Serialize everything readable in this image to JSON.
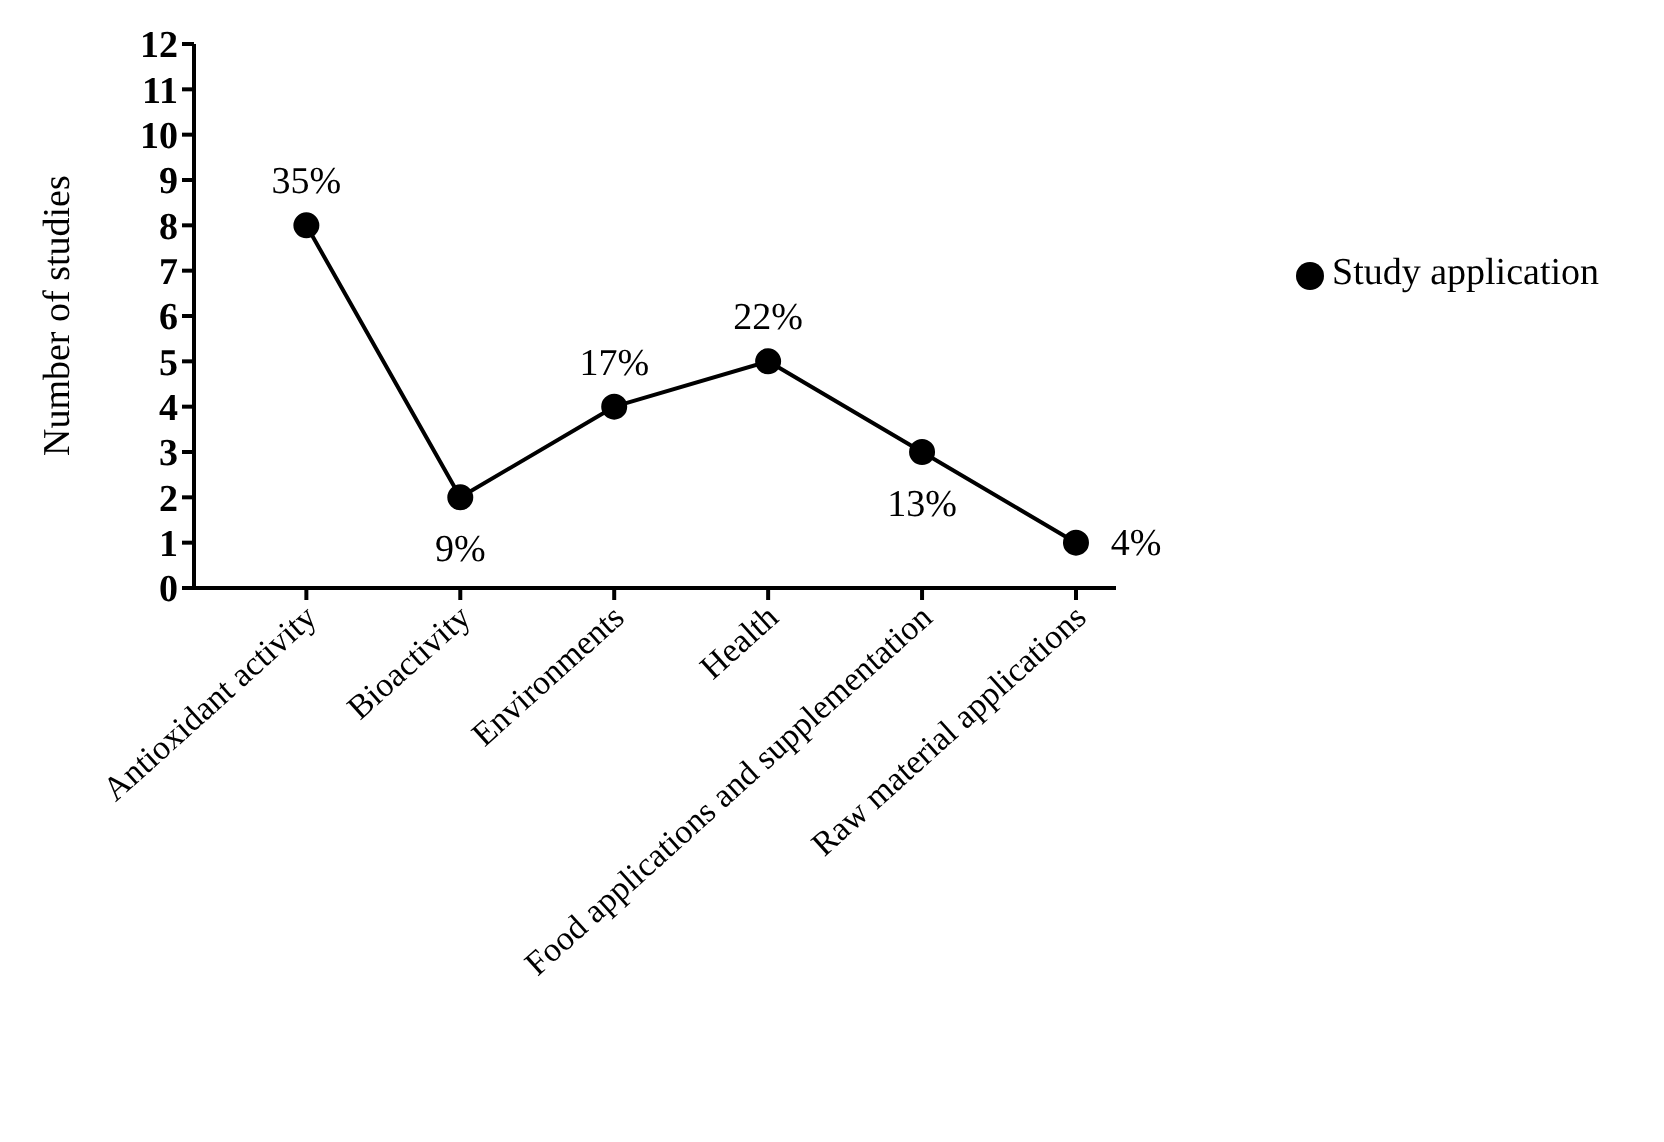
{
  "chart_data": {
    "type": "line",
    "ylabel": "Number of studies",
    "categories": [
      "Antioxidant activity",
      "Bioactivity",
      "Environments",
      "Health",
      "Food applications and supplementation",
      "Raw material applications"
    ],
    "series": [
      {
        "name": "Study application",
        "color": "#000000",
        "values": [
          8,
          2,
          4,
          5,
          3,
          1
        ]
      }
    ],
    "annotations": [
      {
        "text": "35%",
        "x": "Antioxidant activity",
        "y": 8
      },
      {
        "text": "9%",
        "x": "Bioactivity",
        "y": 2
      },
      {
        "text": "17%",
        "x": "Environments",
        "y": 4
      },
      {
        "text": "22%",
        "x": "Health",
        "y": 5
      },
      {
        "text": "13%",
        "x": "Food applications and supplementation",
        "y": 3
      },
      {
        "text": "4%",
        "x": "Raw material applications",
        "y": 1
      }
    ],
    "ylim": [
      0,
      12
    ],
    "yticks": [
      0,
      1,
      2,
      3,
      4,
      5,
      6,
      7,
      8,
      9,
      10,
      11,
      12
    ],
    "grid": false,
    "legend": "right",
    "marker": "circle",
    "line_style": "solid"
  }
}
